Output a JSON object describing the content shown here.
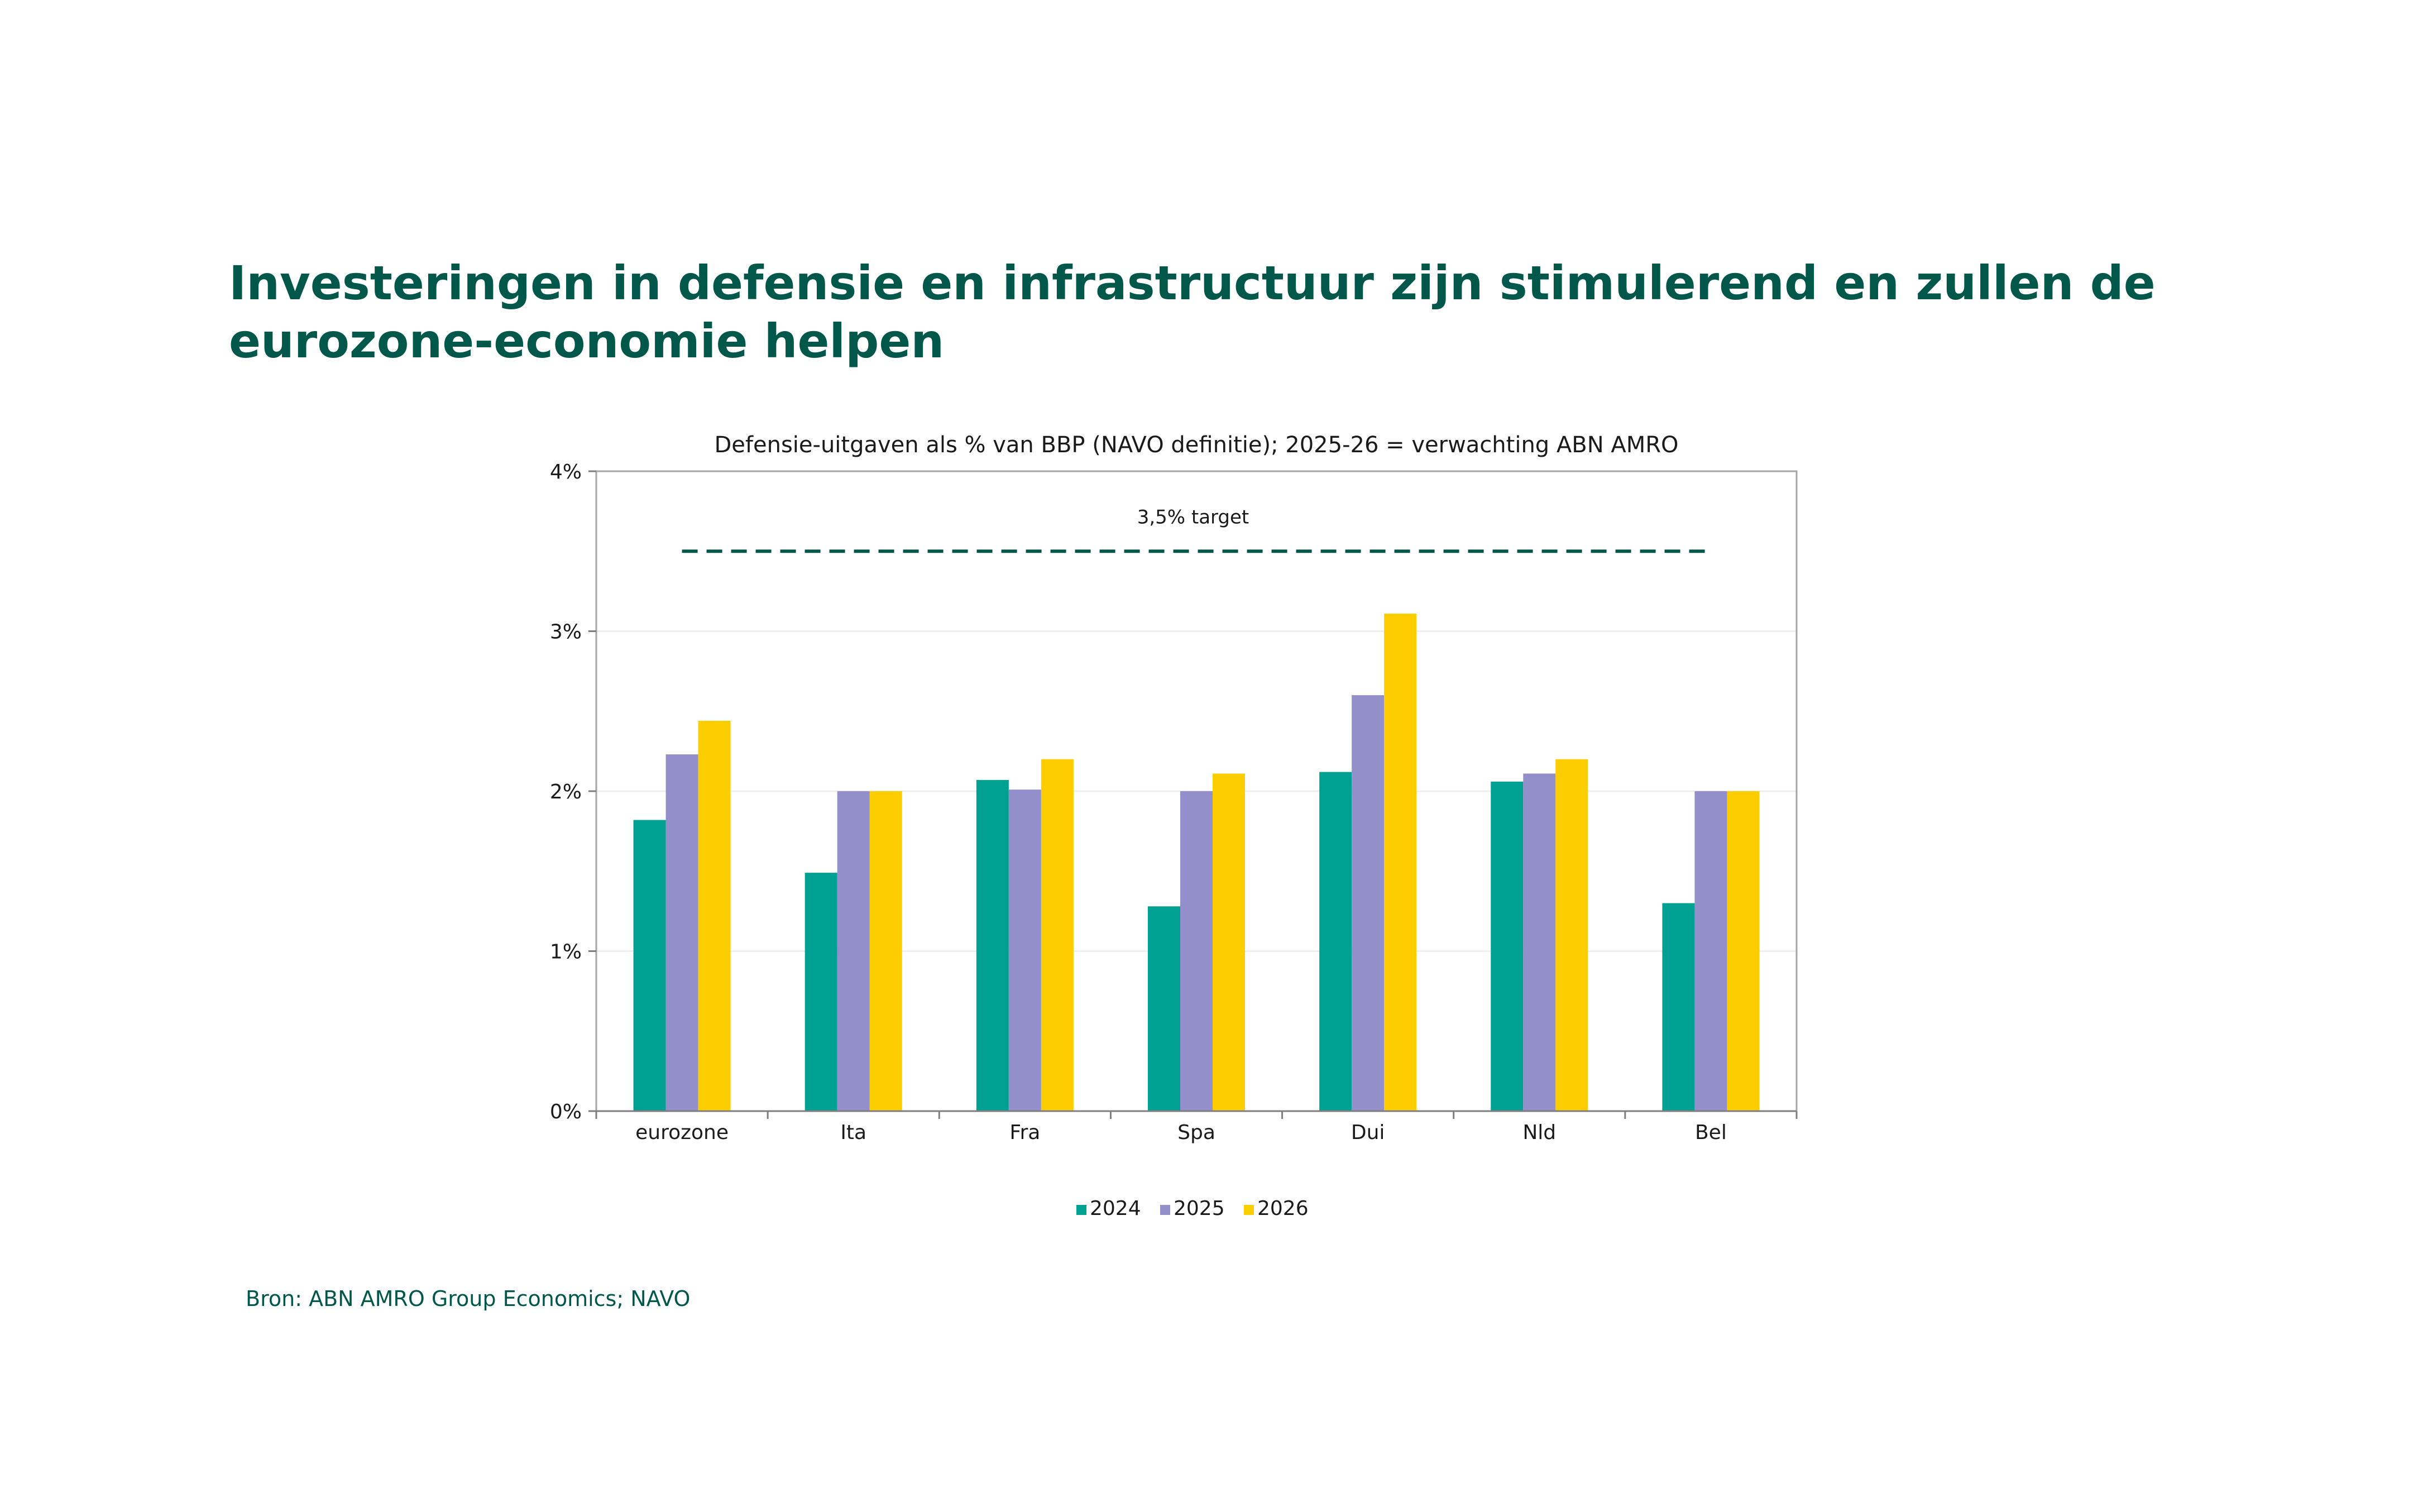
{
  "page": {
    "title": "Investeringen in defensie en infrastructuur zijn stimulerend en zullen de eurozone-economie helpen",
    "source": "Bron: ABN AMRO Group Economics; NAVO"
  },
  "chart_data": {
    "type": "bar",
    "title": "Defensie-uitgaven als % van BBP (NAVO definitie); 2025-26 = verwachting ABN AMRO",
    "xlabel": "",
    "ylabel": "",
    "categories": [
      "eurozone",
      "Ita",
      "Fra",
      "Spa",
      "Dui",
      "Nld",
      "Bel"
    ],
    "series": [
      {
        "name": "2024",
        "color": "#00a092",
        "values": [
          1.82,
          1.49,
          2.07,
          1.28,
          2.12,
          2.06,
          1.3
        ]
      },
      {
        "name": "2025",
        "color": "#938fca",
        "values": [
          2.23,
          2.0,
          2.01,
          2.0,
          2.6,
          2.11,
          2.0
        ]
      },
      {
        "name": "2026",
        "color": "#fcce00",
        "values": [
          2.44,
          2.0,
          2.2,
          2.11,
          3.11,
          2.2,
          2.0
        ]
      }
    ],
    "ylim": [
      0,
      4
    ],
    "yticks": [
      0,
      1,
      2,
      3,
      4
    ],
    "ytick_labels": [
      "0%",
      "1%",
      "2%",
      "3%",
      "4%"
    ],
    "target": {
      "value": 3.5,
      "label": "3,5% target",
      "color": "#00574a"
    },
    "gridlines": true,
    "legend": "bottom-center"
  }
}
